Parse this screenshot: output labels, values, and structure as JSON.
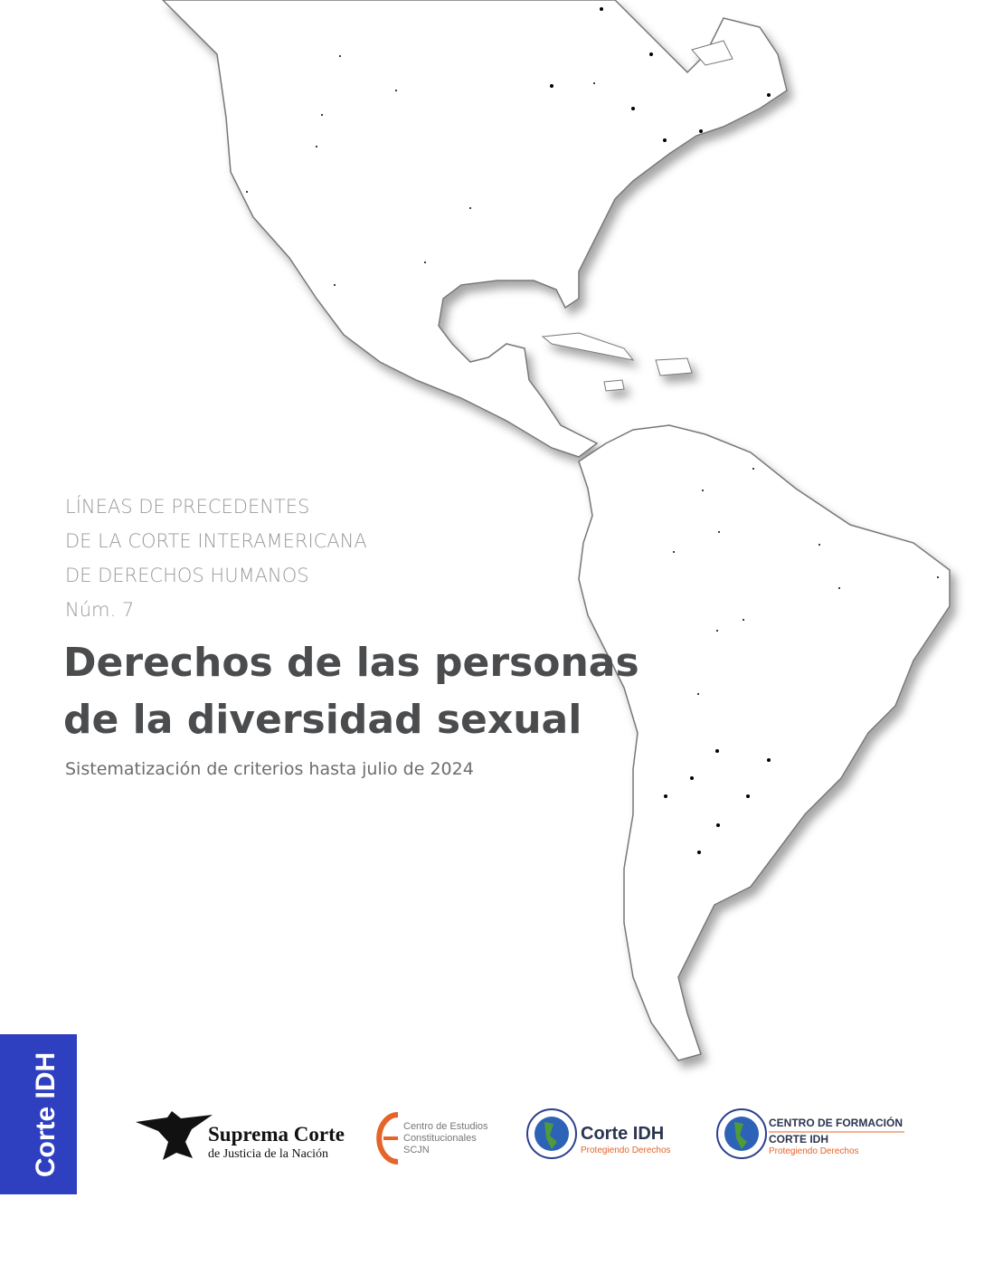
{
  "series_label": {
    "lines": [
      "LÍNEAS DE PRECEDENTES",
      "DE LA CORTE INTERAMERICANA",
      "DE DERECHOS HUMANOS"
    ],
    "number": "Núm. 7"
  },
  "title": {
    "lines": [
      "Derechos de las personas",
      "de la diversidad sexual"
    ]
  },
  "subtitle": "Sistematización de criterios hasta julio de 2024",
  "side_tab": "Corte IDH",
  "logos": {
    "scjn": {
      "name": "Suprema Corte",
      "sub": "de Justicia de la Nación"
    },
    "cec": {
      "lines": [
        "Centro de Estudios",
        "Constitucionales",
        "SCJN"
      ]
    },
    "corte": {
      "name": "Corte IDH",
      "tagline": "Protegiendo Derechos"
    },
    "centro": {
      "lines": [
        "CENTRO DE FORMACIÓN",
        "CORTE IDH"
      ],
      "tagline": "Protegiendo Derechos"
    }
  }
}
